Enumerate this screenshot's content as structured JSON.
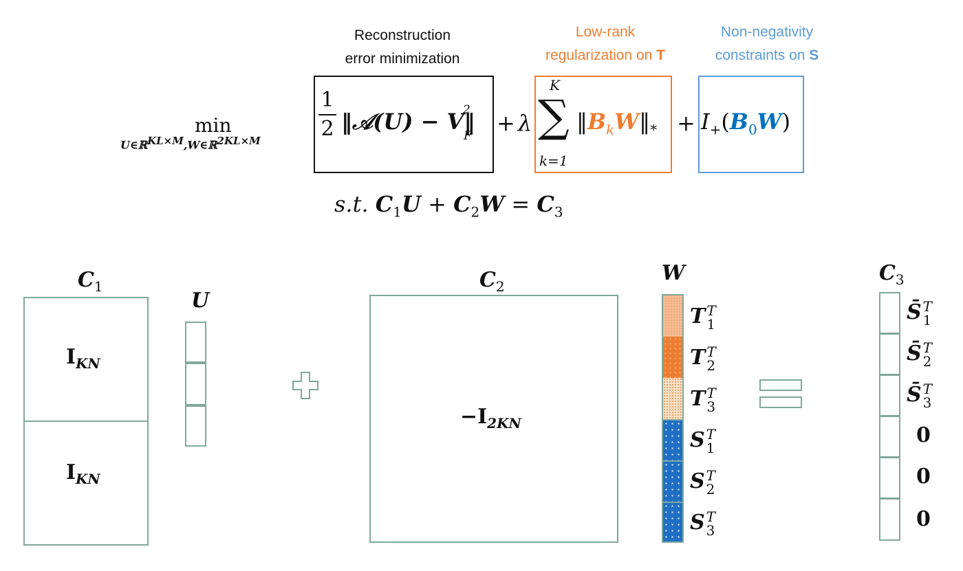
{
  "colors": {
    "frame": "#7fa89c",
    "orange": "#ed7d31",
    "blue": "#0070c0",
    "lightblue": "#5b9bd5",
    "black": "#111111",
    "light_orange": "#f8cbad"
  },
  "annotations": {
    "reconstruction": [
      "Reconstruction",
      "error minimization"
    ],
    "lowrank": [
      "Low-rank",
      "regularization on"
    ],
    "lowrank_var": "T",
    "nonneg": [
      "Non-negativity",
      "constraints on"
    ],
    "nonneg_var": "S"
  },
  "formula": {
    "min": "min",
    "min_subscript_U": "U∈ℝ",
    "min_sup_U": "KL×M",
    "min_subscript_W": ",W∈ℝ",
    "min_sup_W": "2KL×M",
    "half_num": "1",
    "half_den": "2",
    "recon_body": "‖𝒜(U) − V‖",
    "recon_sup": "2",
    "recon_sub": "F",
    "plus1": "+",
    "lambda": "λ",
    "sum_top": "K",
    "sum_sym": "∑",
    "sum_bottom": "k=1",
    "norm_open": "‖",
    "B": "B",
    "k": "k",
    "W": "W",
    "norm_close": "‖",
    "star": "*",
    "plus2": "+",
    "I": "I",
    "I_sub": "+",
    "open_paren": "(",
    "B0": "B",
    "zero": "0",
    "W2": "W",
    "close_paren": ")"
  },
  "constraint": {
    "st": "s.t.",
    "C1": "C",
    "one": "1",
    "U": "U",
    "plus": "+",
    "C2": "C",
    "two": "2",
    "W": "W",
    "eq": "=",
    "C3": "C",
    "three": "3"
  },
  "matrices": {
    "C1": {
      "base": "C",
      "sub": "1",
      "blocks": [
        "I",
        "I"
      ],
      "block_sub": "KN"
    },
    "U": {
      "label": "U"
    },
    "C2": {
      "base": "C",
      "sub": "2",
      "body": "−I",
      "body_sub": "2KN"
    },
    "W": {
      "label": "W",
      "rows": [
        {
          "base": "T",
          "sub": "1",
          "sup": "T"
        },
        {
          "base": "T",
          "sub": "2",
          "sup": "T"
        },
        {
          "base": "T",
          "sub": "3",
          "sup": "T"
        },
        {
          "base": "S",
          "sub": "1",
          "sup": "T"
        },
        {
          "base": "S",
          "sub": "2",
          "sup": "T"
        },
        {
          "base": "S",
          "sub": "3",
          "sup": "T"
        }
      ]
    },
    "C3": {
      "base": "C",
      "sub": "3",
      "rows": [
        {
          "base": "S̄",
          "sub": "1",
          "sup": "T"
        },
        {
          "base": "S̄",
          "sub": "2",
          "sup": "T"
        },
        {
          "base": "S̄",
          "sub": "3",
          "sup": "T"
        },
        {
          "value": "0"
        },
        {
          "value": "0"
        },
        {
          "value": "0"
        }
      ]
    }
  }
}
